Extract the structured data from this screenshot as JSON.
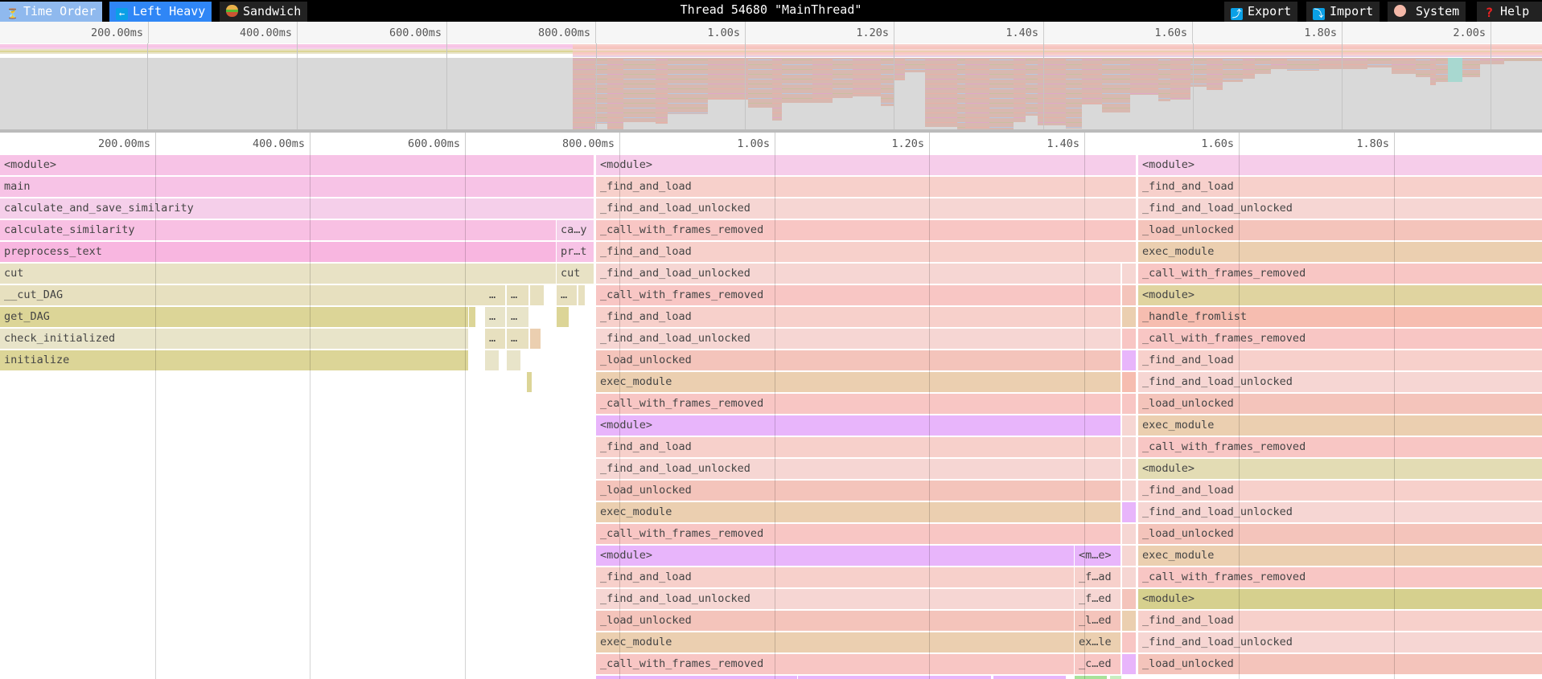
{
  "toolbar": {
    "left_buttons": [
      {
        "label": "Time Order",
        "icon": "hourglass-icon"
      },
      {
        "label": "Left Heavy",
        "icon": "arrow-left-icon"
      },
      {
        "label": "Sandwich",
        "icon": "sandwich-icon"
      }
    ],
    "title": "Thread 54680 \"MainThread\"",
    "right_buttons": [
      {
        "label": "Export",
        "icon": "export-icon"
      },
      {
        "label": "Import",
        "icon": "import-icon"
      },
      {
        "label": "System",
        "icon": "palette-icon"
      },
      {
        "label": "Help",
        "icon": "question-icon"
      }
    ],
    "active_view": "Left Heavy"
  },
  "overview_ruler": {
    "ticks": [
      "200.00ms",
      "400.00ms",
      "600.00ms",
      "800.00ms",
      "1.00s",
      "1.20s",
      "1.40s",
      "1.60s",
      "1.80s",
      "2.00s"
    ]
  },
  "flame_ruler": {
    "ticks": [
      "200.00ms",
      "400.00ms",
      "600.00ms",
      "800.00ms",
      "1.00s",
      "1.20s",
      "1.40s",
      "1.60s",
      "1.80s"
    ]
  },
  "colors": {
    "<module>": "#f6cdea",
    "main": "#f7c3e6",
    "calculate_and_save_similarity": "#f5cfea",
    "calculate_similarity": "#f8c0e3",
    "preprocess_text": "#f8b6e0",
    "cut": "#e8e2c5",
    "__cut_DAG": "#e7e0bf",
    "get_DAG": "#dcd597",
    "check_initialized": "#e8e4c9",
    "initialize": "#dcd597",
    "_find_and_load": "#f7d0cb",
    "_find_and_load_unlocked": "#f6d6d3",
    "_call_with_frames_removed": "#f8c6c4",
    "_load_unlocked": "#f4c4bb",
    "exec_module": "#ebcfb0",
    "_handle_fromlist": "#f6bdb0",
    "purple_module": "#e8b5fb",
    "olive_module": "#e0d4a0",
    "olive_module_2": "#e3dcb4",
    "olive_module_3": "#d6d08e"
  },
  "flame": {
    "frames": [
      {
        "name": "<module>",
        "start": 0,
        "end": 767,
        "depth": 0,
        "color": "main"
      },
      {
        "name": "main",
        "start": 0,
        "end": 767,
        "depth": 1,
        "color": "main"
      },
      {
        "name": "calculate_and_save_similarity",
        "start": 0,
        "end": 767,
        "depth": 2,
        "color": "calculate_and_save_similarity"
      },
      {
        "name": "calculate_similarity",
        "start": 0,
        "end": 718,
        "depth": 3,
        "color": "calculate_similarity"
      },
      {
        "name": "ca…y",
        "start": 719,
        "end": 767,
        "depth": 3,
        "color": "calculate_and_save_similarity"
      },
      {
        "name": "preprocess_text",
        "start": 0,
        "end": 718,
        "depth": 4,
        "color": "preprocess_text"
      },
      {
        "name": "pr…t",
        "start": 719,
        "end": 767,
        "depth": 4,
        "color": "main"
      },
      {
        "name": "cut",
        "start": 0,
        "end": 718,
        "depth": 5,
        "color": "cut"
      },
      {
        "name": "cut",
        "start": 719,
        "end": 767,
        "depth": 5,
        "color": "cut"
      },
      {
        "name": "__cut_DAG",
        "start": 0,
        "end": 626,
        "depth": 6,
        "color": "__cut_DAG"
      },
      {
        "name": "…",
        "start": 627,
        "end": 653,
        "depth": 6,
        "color": "__cut_DAG"
      },
      {
        "name": "…",
        "start": 655,
        "end": 683,
        "depth": 6,
        "color": "__cut_DAG"
      },
      {
        "name": "",
        "start": 685,
        "end": 703,
        "depth": 6,
        "color": "__cut_DAG"
      },
      {
        "name": "…",
        "start": 719,
        "end": 745,
        "depth": 6,
        "color": "__cut_DAG"
      },
      {
        "name": "",
        "start": 747,
        "end": 755,
        "depth": 6,
        "color": "__cut_DAG"
      },
      {
        "name": "get_DAG",
        "start": 0,
        "end": 605,
        "depth": 7,
        "color": "get_DAG"
      },
      {
        "name": "",
        "start": 606,
        "end": 614,
        "depth": 7,
        "color": "get_DAG"
      },
      {
        "name": "…",
        "start": 627,
        "end": 653,
        "depth": 7,
        "color": "check_initialized"
      },
      {
        "name": "…",
        "start": 655,
        "end": 683,
        "depth": 7,
        "color": "check_initialized"
      },
      {
        "name": "",
        "start": 719,
        "end": 735,
        "depth": 7,
        "color": "get_DAG"
      },
      {
        "name": "check_initialized",
        "start": 0,
        "end": 605,
        "depth": 8,
        "color": "check_initialized"
      },
      {
        "name": "…",
        "start": 627,
        "end": 653,
        "depth": 8,
        "color": "__cut_DAG"
      },
      {
        "name": "…",
        "start": 655,
        "end": 683,
        "depth": 8,
        "color": "__cut_DAG"
      },
      {
        "name": "",
        "start": 685,
        "end": 699,
        "depth": 8,
        "color": "exec_module"
      },
      {
        "name": "initialize",
        "start": 0,
        "end": 605,
        "depth": 9,
        "color": "initialize"
      },
      {
        "name": "",
        "start": 627,
        "end": 645,
        "depth": 9,
        "color": "check_initialized"
      },
      {
        "name": "",
        "start": 655,
        "end": 673,
        "depth": 9,
        "color": "check_initialized"
      },
      {
        "name": "",
        "start": 685,
        "end": 683,
        "depth": 10,
        "color": "get_DAG"
      },
      {
        "name": "",
        "start": 680,
        "end": 686,
        "depth": 10,
        "color": "get_DAG"
      },
      {
        "name": "<module>",
        "start": 770,
        "end": 1467,
        "depth": 0,
        "color": "<module>"
      },
      {
        "name": "_find_and_load",
        "start": 770,
        "end": 1467,
        "depth": 1,
        "color": "_find_and_load"
      },
      {
        "name": "_find_and_load_unlocked",
        "start": 770,
        "end": 1467,
        "depth": 2,
        "color": "_find_and_load_unlocked"
      },
      {
        "name": "_call_with_frames_removed",
        "start": 770,
        "end": 1467,
        "depth": 3,
        "color": "_call_with_frames_removed"
      },
      {
        "name": "_find_and_load",
        "start": 770,
        "end": 1467,
        "depth": 4,
        "color": "_find_and_load"
      },
      {
        "name": "_find_and_load_unlocked",
        "start": 770,
        "end": 1447,
        "depth": 5,
        "color": "_find_and_load_unlocked"
      },
      {
        "name": "_call_with_frames_removed",
        "start": 770,
        "end": 1447,
        "depth": 6,
        "color": "_call_with_frames_removed"
      },
      {
        "name": "_find_and_load",
        "start": 770,
        "end": 1447,
        "depth": 7,
        "color": "_find_and_load"
      },
      {
        "name": "_find_and_load_unlocked",
        "start": 770,
        "end": 1447,
        "depth": 8,
        "color": "_find_and_load_unlocked"
      },
      {
        "name": "_load_unlocked",
        "start": 770,
        "end": 1447,
        "depth": 9,
        "color": "_load_unlocked"
      },
      {
        "name": "exec_module",
        "start": 770,
        "end": 1447,
        "depth": 10,
        "color": "exec_module"
      },
      {
        "name": "_call_with_frames_removed",
        "start": 770,
        "end": 1447,
        "depth": 11,
        "color": "_call_with_frames_removed"
      },
      {
        "name": "<module>",
        "start": 770,
        "end": 1447,
        "depth": 12,
        "color": "purple_module"
      },
      {
        "name": "_find_and_load",
        "start": 770,
        "end": 1447,
        "depth": 13,
        "color": "_find_and_load"
      },
      {
        "name": "_find_and_load_unlocked",
        "start": 770,
        "end": 1447,
        "depth": 14,
        "color": "_find_and_load_unlocked"
      },
      {
        "name": "_load_unlocked",
        "start": 770,
        "end": 1447,
        "depth": 15,
        "color": "_load_unlocked"
      },
      {
        "name": "exec_module",
        "start": 770,
        "end": 1447,
        "depth": 16,
        "color": "exec_module"
      },
      {
        "name": "_call_with_frames_removed",
        "start": 770,
        "end": 1447,
        "depth": 17,
        "color": "_call_with_frames_removed"
      },
      {
        "name": "<module>",
        "start": 770,
        "end": 1387,
        "depth": 18,
        "color": "purple_module"
      },
      {
        "name": "<m…e>",
        "start": 1388,
        "end": 1447,
        "depth": 18,
        "color": "purple_module"
      },
      {
        "name": "_find_and_load",
        "start": 770,
        "end": 1387,
        "depth": 19,
        "color": "_find_and_load"
      },
      {
        "name": "_f…ad",
        "start": 1388,
        "end": 1447,
        "depth": 19,
        "color": "_find_and_load"
      },
      {
        "name": "_find_and_load_unlocked",
        "start": 770,
        "end": 1387,
        "depth": 20,
        "color": "_find_and_load_unlocked"
      },
      {
        "name": "_f…ed",
        "start": 1388,
        "end": 1447,
        "depth": 20,
        "color": "_find_and_load_unlocked"
      },
      {
        "name": "_load_unlocked",
        "start": 770,
        "end": 1387,
        "depth": 21,
        "color": "_load_unlocked"
      },
      {
        "name": "_l…ed",
        "start": 1388,
        "end": 1447,
        "depth": 21,
        "color": "_load_unlocked"
      },
      {
        "name": "exec_module",
        "start": 770,
        "end": 1387,
        "depth": 22,
        "color": "exec_module"
      },
      {
        "name": "ex…le",
        "start": 1388,
        "end": 1447,
        "depth": 22,
        "color": "exec_module"
      },
      {
        "name": "_call_with_frames_removed",
        "start": 770,
        "end": 1387,
        "depth": 23,
        "color": "_call_with_frames_removed"
      },
      {
        "name": "_c…ed",
        "start": 1388,
        "end": 1447,
        "depth": 23,
        "color": "_call_with_frames_removed"
      },
      {
        "name": "",
        "start": 1449,
        "end": 1467,
        "depth": 5,
        "color": "_find_and_load_unlocked"
      },
      {
        "name": "",
        "start": 1449,
        "end": 1467,
        "depth": 6,
        "color": "_load_unlocked"
      },
      {
        "name": "",
        "start": 1449,
        "end": 1467,
        "depth": 7,
        "color": "exec_module"
      },
      {
        "name": "",
        "start": 1449,
        "end": 1467,
        "depth": 8,
        "color": "_call_with_frames_removed"
      },
      {
        "name": "",
        "start": 1449,
        "end": 1467,
        "depth": 9,
        "color": "purple_module"
      },
      {
        "name": "",
        "start": 1449,
        "end": 1467,
        "depth": 10,
        "color": "_handle_fromlist"
      },
      {
        "name": "",
        "start": 1449,
        "end": 1467,
        "depth": 11,
        "color": "_call_with_frames_removed"
      },
      {
        "name": "",
        "start": 1449,
        "end": 1467,
        "depth": 12,
        "color": "_find_and_load_unlocked"
      },
      {
        "name": "",
        "start": 1449,
        "end": 1467,
        "depth": 13,
        "color": "_find_and_load_unlocked"
      },
      {
        "name": "",
        "start": 1449,
        "end": 1467,
        "depth": 14,
        "color": "_find_and_load_unlocked"
      },
      {
        "name": "",
        "start": 1449,
        "end": 1467,
        "depth": 15,
        "color": "_find_and_load_unlocked"
      },
      {
        "name": "",
        "start": 1449,
        "end": 1467,
        "depth": 16,
        "color": "purple_module"
      },
      {
        "name": "",
        "start": 1449,
        "end": 1467,
        "depth": 17,
        "color": "_find_and_load_unlocked"
      },
      {
        "name": "",
        "start": 1449,
        "end": 1467,
        "depth": 18,
        "color": "_find_and_load_unlocked"
      },
      {
        "name": "",
        "start": 1449,
        "end": 1467,
        "depth": 19,
        "color": "_find_and_load_unlocked"
      },
      {
        "name": "",
        "start": 1449,
        "end": 1467,
        "depth": 20,
        "color": "_load_unlocked"
      },
      {
        "name": "",
        "start": 1449,
        "end": 1467,
        "depth": 21,
        "color": "exec_module"
      },
      {
        "name": "",
        "start": 1449,
        "end": 1467,
        "depth": 22,
        "color": "_call_with_frames_removed"
      },
      {
        "name": "",
        "start": 1449,
        "end": 1467,
        "depth": 23,
        "color": "purple_module"
      },
      {
        "name": "<module>",
        "start": 1470,
        "end": 1992,
        "depth": 0,
        "color": "<module>"
      },
      {
        "name": "_find_and_load",
        "start": 1470,
        "end": 1992,
        "depth": 1,
        "color": "_find_and_load"
      },
      {
        "name": "_find_and_load_unlocked",
        "start": 1470,
        "end": 1992,
        "depth": 2,
        "color": "_find_and_load_unlocked"
      },
      {
        "name": "_load_unlocked",
        "start": 1470,
        "end": 1992,
        "depth": 3,
        "color": "_load_unlocked"
      },
      {
        "name": "exec_module",
        "start": 1470,
        "end": 1992,
        "depth": 4,
        "color": "exec_module"
      },
      {
        "name": "_call_with_frames_removed",
        "start": 1470,
        "end": 1992,
        "depth": 5,
        "color": "_call_with_frames_removed"
      },
      {
        "name": "<module>",
        "start": 1470,
        "end": 1992,
        "depth": 6,
        "color": "olive_module"
      },
      {
        "name": "_handle_fromlist",
        "start": 1470,
        "end": 1992,
        "depth": 7,
        "color": "_handle_fromlist"
      },
      {
        "name": "_call_with_frames_removed",
        "start": 1470,
        "end": 1992,
        "depth": 8,
        "color": "_call_with_frames_removed"
      },
      {
        "name": "_find_and_load",
        "start": 1470,
        "end": 1992,
        "depth": 9,
        "color": "_find_and_load"
      },
      {
        "name": "_find_and_load_unlocked",
        "start": 1470,
        "end": 1992,
        "depth": 10,
        "color": "_find_and_load_unlocked"
      },
      {
        "name": "_load_unlocked",
        "start": 1470,
        "end": 1992,
        "depth": 11,
        "color": "_load_unlocked"
      },
      {
        "name": "exec_module",
        "start": 1470,
        "end": 1992,
        "depth": 12,
        "color": "exec_module"
      },
      {
        "name": "_call_with_frames_removed",
        "start": 1470,
        "end": 1992,
        "depth": 13,
        "color": "_call_with_frames_removed"
      },
      {
        "name": "<module>",
        "start": 1470,
        "end": 1992,
        "depth": 14,
        "color": "olive_module_2"
      },
      {
        "name": "_find_and_load",
        "start": 1470,
        "end": 1992,
        "depth": 15,
        "color": "_find_and_load"
      },
      {
        "name": "_find_and_load_unlocked",
        "start": 1470,
        "end": 1992,
        "depth": 16,
        "color": "_find_and_load_unlocked"
      },
      {
        "name": "_load_unlocked",
        "start": 1470,
        "end": 1992,
        "depth": 17,
        "color": "_load_unlocked"
      },
      {
        "name": "exec_module",
        "start": 1470,
        "end": 1992,
        "depth": 18,
        "color": "exec_module"
      },
      {
        "name": "_call_with_frames_removed",
        "start": 1470,
        "end": 1992,
        "depth": 19,
        "color": "_call_with_frames_removed"
      },
      {
        "name": "<module>",
        "start": 1470,
        "end": 1992,
        "depth": 20,
        "color": "olive_module_3"
      },
      {
        "name": "_find_and_load",
        "start": 1470,
        "end": 1992,
        "depth": 21,
        "color": "_find_and_load"
      },
      {
        "name": "_find_and_load_unlocked",
        "start": 1470,
        "end": 1992,
        "depth": 22,
        "color": "_find_and_load_unlocked"
      },
      {
        "name": "_load_unlocked",
        "start": 1470,
        "end": 1992,
        "depth": 23,
        "color": "_load_unlocked"
      }
    ]
  }
}
